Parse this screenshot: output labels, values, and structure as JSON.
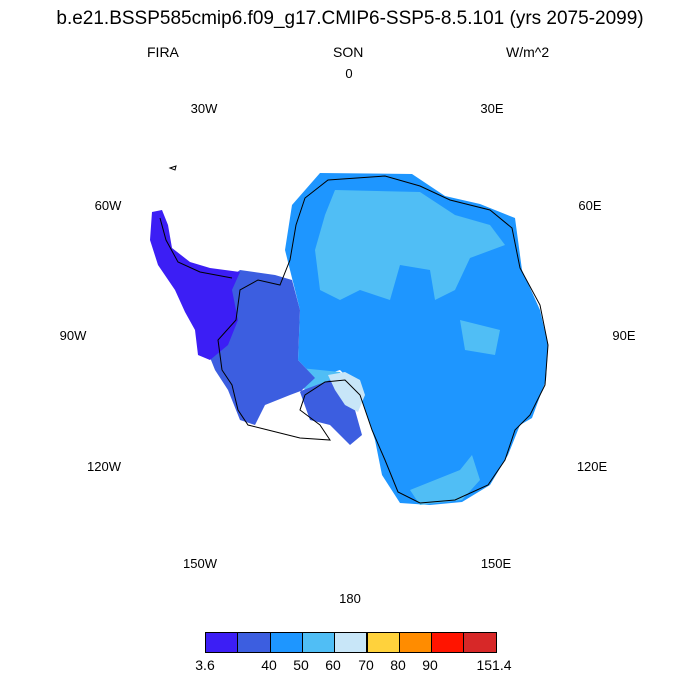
{
  "title": "b.e21.BSSP585cmip6.f09_g17.CMIP6-SSP5-8.5.101 (yrs 2075-2099)",
  "left_label": "FIRA",
  "center_label": "SON",
  "right_label": "W/m^2",
  "longitude_labels": [
    "0",
    "30E",
    "60E",
    "90E",
    "120E",
    "150E",
    "180",
    "150W",
    "120W",
    "90W",
    "60W",
    "30W"
  ],
  "colorbar": {
    "colors": [
      "#3c1ef5",
      "#3c5ee0",
      "#1e96ff",
      "#50bef5",
      "#c8e6f8",
      "#ffd23c",
      "#ff8c00",
      "#ff1400",
      "#d72828"
    ],
    "labels": [
      "3.6",
      "40",
      "50",
      "60",
      "70",
      "80",
      "90",
      "151.4"
    ]
  },
  "map_regions": [
    {
      "name": "east-antarctica",
      "color": "#1e96ff"
    },
    {
      "name": "plateau-patches",
      "color": "#50bef5"
    },
    {
      "name": "west-antarctica",
      "color": "#3c5ee0"
    },
    {
      "name": "peninsula",
      "color": "#3c1ef5"
    },
    {
      "name": "ross-ice-shelf",
      "color": "#c8e6f8"
    }
  ]
}
